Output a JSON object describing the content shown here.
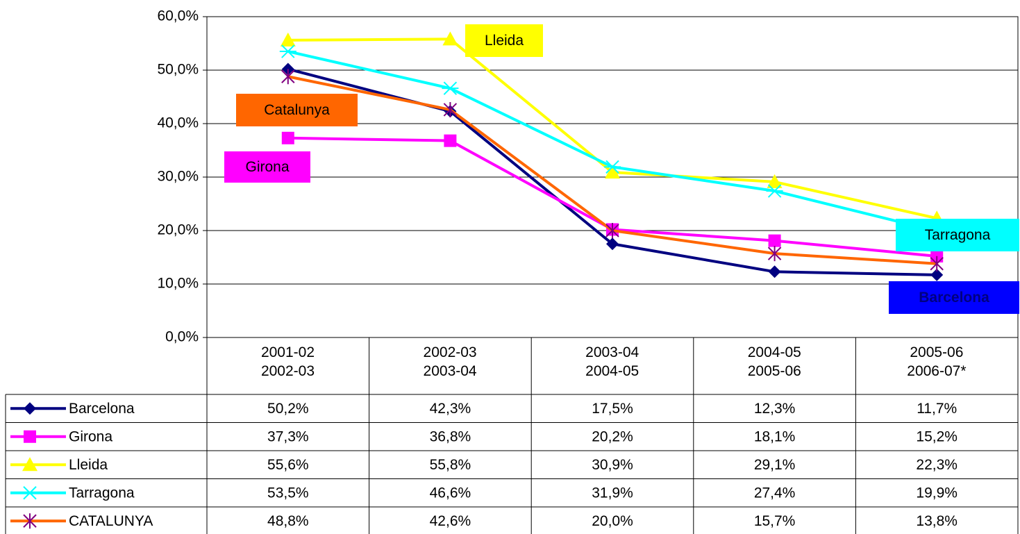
{
  "chart_data": {
    "type": "line",
    "categories": [
      "2001-02\n2002-03",
      "2002-03\n2003-04",
      "2003-04\n2004-05",
      "2004-05\n2005-06",
      "2005-06\n2006-07*"
    ],
    "ylim": [
      0,
      60
    ],
    "yticks": [
      {
        "value": 0,
        "label": "0,0%"
      },
      {
        "value": 10,
        "label": "10,0%"
      },
      {
        "value": 20,
        "label": "20,0%"
      },
      {
        "value": 30,
        "label": "30,0%"
      },
      {
        "value": 40,
        "label": "40,0%"
      },
      {
        "value": 50,
        "label": "50,0%"
      },
      {
        "value": 60,
        "label": "60,0%"
      }
    ],
    "grid": true,
    "series": [
      {
        "name": "Barcelona",
        "color": "#000080",
        "marker": "diamond",
        "values": [
          50.2,
          42.3,
          17.5,
          12.3,
          11.7
        ],
        "value_labels": [
          "50,2%",
          "42,3%",
          "17,5%",
          "12,3%",
          "11,7%"
        ]
      },
      {
        "name": "Girona",
        "color": "#ff00ff",
        "marker": "square",
        "values": [
          37.3,
          36.8,
          20.2,
          18.1,
          15.2
        ],
        "value_labels": [
          "37,3%",
          "36,8%",
          "20,2%",
          "18,1%",
          "15,2%"
        ]
      },
      {
        "name": "Lleida",
        "color": "#ffff00",
        "marker": "triangle",
        "values": [
          55.6,
          55.8,
          30.9,
          29.1,
          22.3
        ],
        "value_labels": [
          "55,6%",
          "55,8%",
          "30,9%",
          "29,1%",
          "22,3%"
        ]
      },
      {
        "name": "Tarragona",
        "color": "#00ffff",
        "marker": "star",
        "values": [
          53.5,
          46.6,
          31.9,
          27.4,
          19.9
        ],
        "value_labels": [
          "53,5%",
          "46,6%",
          "31,9%",
          "27,4%",
          "19,9%"
        ]
      },
      {
        "name": "CATALUNYA",
        "color": "#ff6600",
        "marker_color": "#800080",
        "marker": "asterisk",
        "values": [
          48.8,
          42.6,
          20.0,
          15.7,
          13.8
        ],
        "value_labels": [
          "48,8%",
          "42,6%",
          "20,0%",
          "15,7%",
          "13,8%"
        ]
      }
    ],
    "annotations": [
      {
        "text": "Lleida",
        "color": "#ffff00"
      },
      {
        "text": "Catalunya",
        "color": "#ff6600"
      },
      {
        "text": "Girona",
        "color": "#ff00ff"
      },
      {
        "text": "Tarragona",
        "color": "#00ffff"
      },
      {
        "text": "Barcelona",
        "color": "#0000ff"
      }
    ]
  }
}
